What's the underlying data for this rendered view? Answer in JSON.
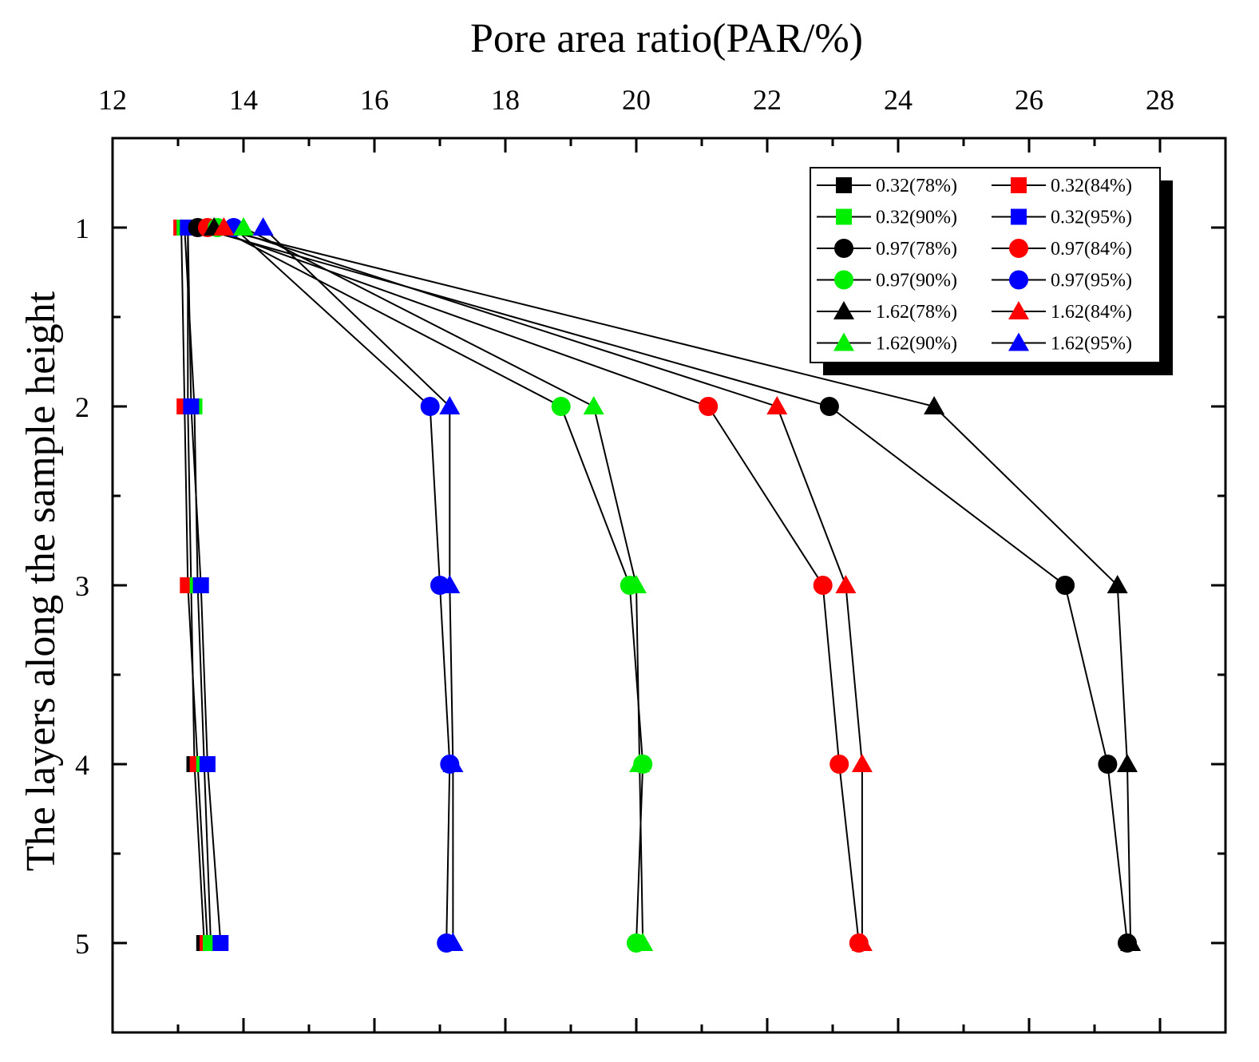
{
  "chart_data": {
    "type": "line",
    "orientation": "horizontal",
    "title": "",
    "xlabel": "Pore area ratio(PAR/%)",
    "ylabel": "The layers along the sample height",
    "xlim": [
      12,
      29
    ],
    "ylim": [
      0.5,
      5.5
    ],
    "x_ticks": [
      "12",
      "14",
      "16",
      "18",
      "20",
      "22",
      "24",
      "26",
      "28"
    ],
    "y_ticks": [
      "1",
      "2",
      "3",
      "4",
      "5"
    ],
    "y_axis_inverted": true,
    "x_axis_position": "top",
    "legend_position": "top-right",
    "grid": false,
    "layers": [
      1,
      2,
      3,
      4,
      5
    ],
    "series": [
      {
        "name": "0.32(78%)",
        "marker": "square",
        "color": "#000000",
        "values": [
          13.15,
          13.15,
          13.2,
          13.25,
          13.4
        ]
      },
      {
        "name": "0.32(84%)",
        "marker": "square",
        "color": "#ff0000",
        "values": [
          13.05,
          13.1,
          13.15,
          13.3,
          13.45
        ]
      },
      {
        "name": "0.32(90%)",
        "marker": "square",
        "color": "#00ee00",
        "values": [
          13.1,
          13.25,
          13.3,
          13.4,
          13.5
        ]
      },
      {
        "name": "0.32(95%)",
        "marker": "square",
        "color": "#0000ff",
        "values": [
          13.15,
          13.2,
          13.35,
          13.45,
          13.65
        ]
      },
      {
        "name": "0.97(78%)",
        "marker": "circle",
        "color": "#000000",
        "values": [
          13.3,
          22.95,
          26.55,
          27.2,
          27.5
        ]
      },
      {
        "name": "0.97(84%)",
        "marker": "circle",
        "color": "#ff0000",
        "values": [
          13.45,
          21.1,
          22.85,
          23.1,
          23.4
        ]
      },
      {
        "name": "0.97(90%)",
        "marker": "circle",
        "color": "#00ee00",
        "values": [
          13.6,
          18.85,
          19.9,
          20.1,
          20.0
        ]
      },
      {
        "name": "0.97(95%)",
        "marker": "circle",
        "color": "#0000ff",
        "values": [
          13.85,
          16.85,
          17.0,
          17.15,
          17.1
        ]
      },
      {
        "name": "1.62(78%)",
        "marker": "triangle",
        "color": "#000000",
        "values": [
          13.55,
          24.55,
          27.35,
          27.5,
          27.55
        ]
      },
      {
        "name": "1.62(84%)",
        "marker": "triangle",
        "color": "#ff0000",
        "values": [
          13.7,
          22.15,
          23.2,
          23.45,
          23.45
        ]
      },
      {
        "name": "1.62(90%)",
        "marker": "triangle",
        "color": "#00ee00",
        "values": [
          14.0,
          19.35,
          20.0,
          20.05,
          20.1
        ]
      },
      {
        "name": "1.62(95%)",
        "marker": "triangle",
        "color": "#0000ff",
        "values": [
          14.3,
          17.15,
          17.15,
          17.2,
          17.2
        ]
      }
    ]
  }
}
